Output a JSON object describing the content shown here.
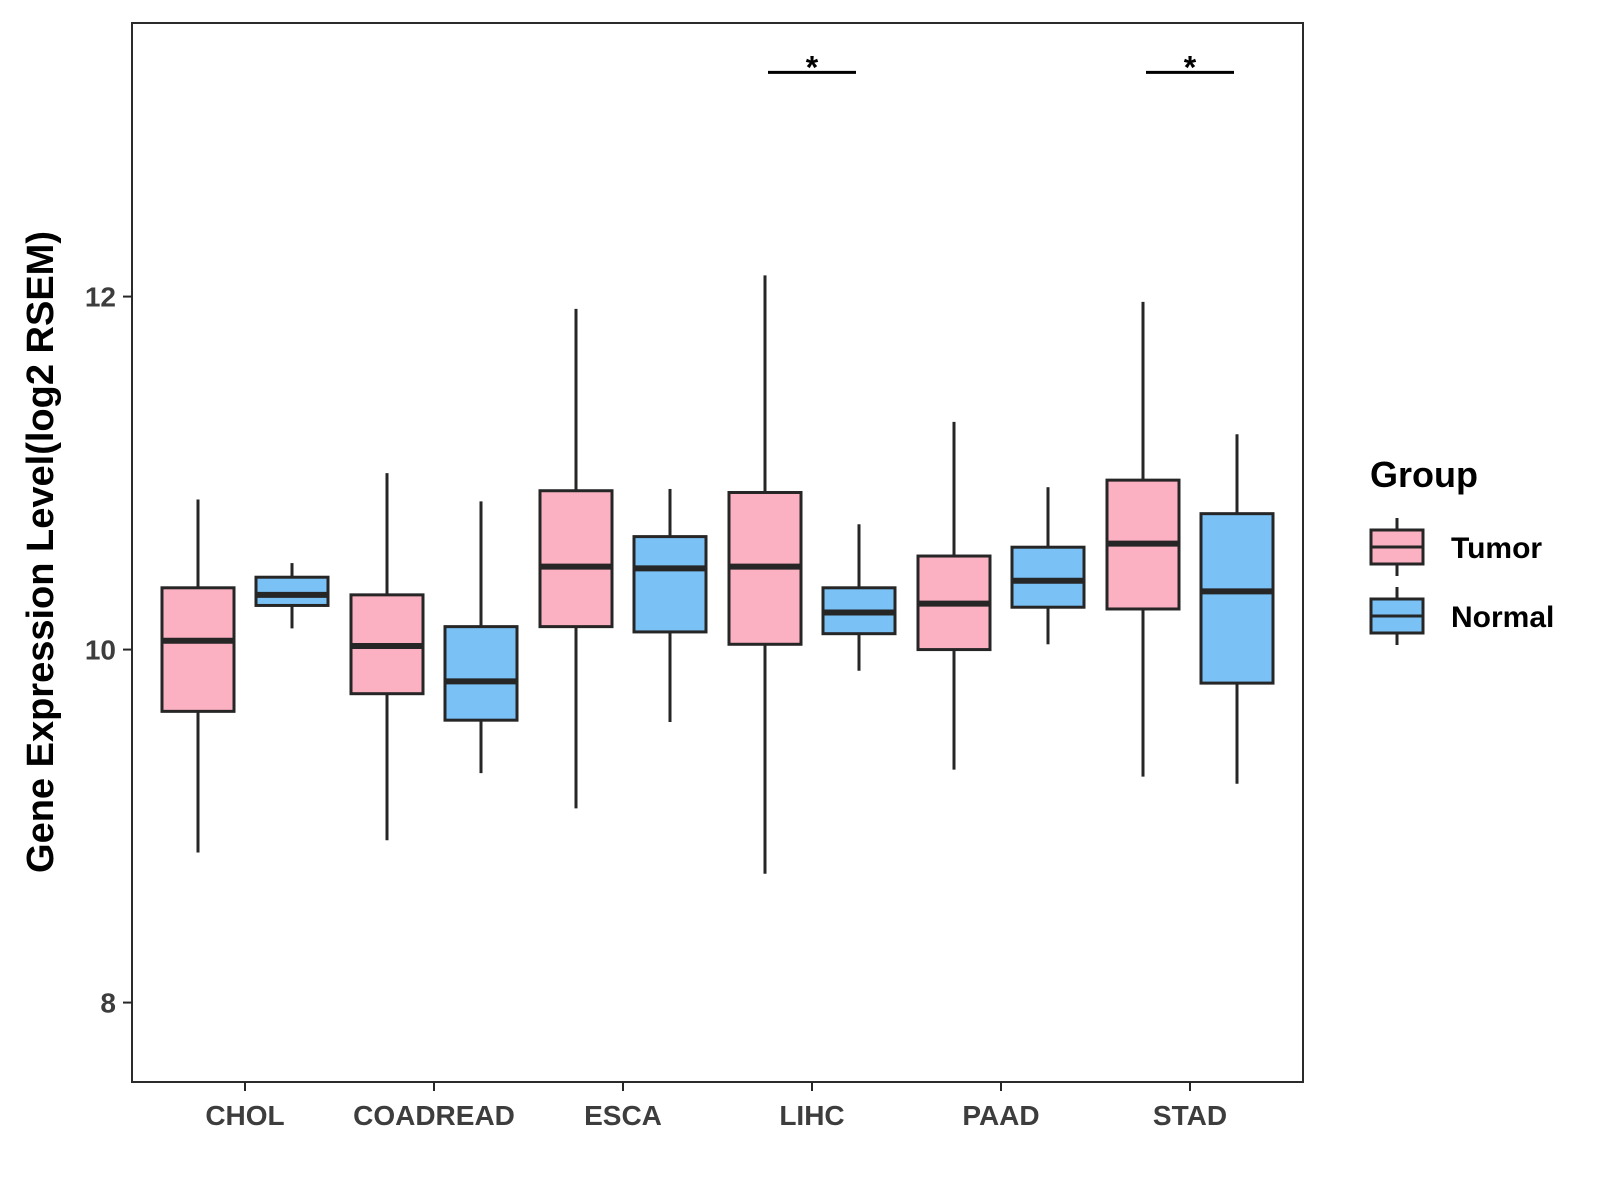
{
  "chart_data": {
    "type": "boxplot",
    "title": "",
    "xlabel": "",
    "ylabel": "Gene Expression Level(log2 RSEM)",
    "ylim": [
      7.55,
      13.55
    ],
    "yticks": [
      8,
      10,
      12
    ],
    "categories": [
      "CHOL",
      "COADREAD",
      "ESCA",
      "LIHC",
      "PAAD",
      "STAD"
    ],
    "legend": {
      "title": "Group",
      "position": "right"
    },
    "series": [
      {
        "name": "Tumor",
        "color": "#FBB1C1",
        "boxes": [
          {
            "min": 8.85,
            "q1": 9.65,
            "median": 10.05,
            "q3": 10.35,
            "max": 10.85
          },
          {
            "min": 8.92,
            "q1": 9.75,
            "median": 10.02,
            "q3": 10.31,
            "max": 11.0
          },
          {
            "min": 9.1,
            "q1": 10.13,
            "median": 10.47,
            "q3": 10.9,
            "max": 11.93
          },
          {
            "min": 8.73,
            "q1": 10.03,
            "median": 10.47,
            "q3": 10.89,
            "max": 12.12
          },
          {
            "min": 9.32,
            "q1": 10.0,
            "median": 10.26,
            "q3": 10.53,
            "max": 11.29
          },
          {
            "min": 9.28,
            "q1": 10.23,
            "median": 10.6,
            "q3": 10.96,
            "max": 11.97
          }
        ]
      },
      {
        "name": "Normal",
        "color": "#7AC1F6",
        "boxes": [
          {
            "min": 10.12,
            "q1": 10.25,
            "median": 10.31,
            "q3": 10.41,
            "max": 10.49
          },
          {
            "min": 9.3,
            "q1": 9.6,
            "median": 9.82,
            "q3": 10.13,
            "max": 10.84
          },
          {
            "min": 9.59,
            "q1": 10.1,
            "median": 10.46,
            "q3": 10.64,
            "max": 10.91
          },
          {
            "min": 9.88,
            "q1": 10.09,
            "median": 10.21,
            "q3": 10.35,
            "max": 10.71
          },
          {
            "min": 10.03,
            "q1": 10.24,
            "median": 10.39,
            "q3": 10.58,
            "max": 10.92
          },
          {
            "min": 9.24,
            "q1": 9.81,
            "median": 10.33,
            "q3": 10.77,
            "max": 11.22
          }
        ]
      }
    ],
    "significance": [
      {
        "category": "LIHC",
        "label": "*",
        "y": 13.27
      },
      {
        "category": "STAD",
        "label": "*",
        "y": 13.27
      }
    ]
  }
}
